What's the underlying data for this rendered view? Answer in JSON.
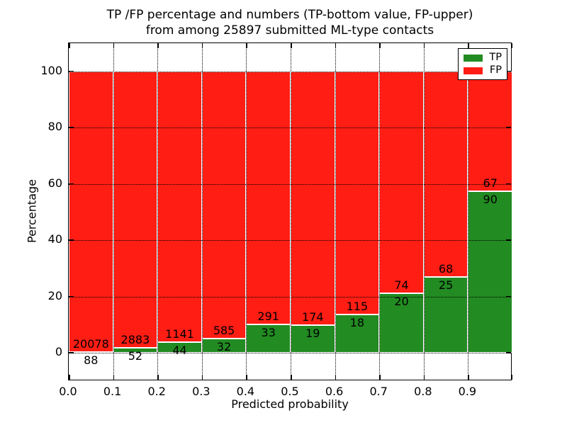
{
  "title": {
    "line1": "TP /FP percentage and numbers (TP-bottom value, FP-upper)",
    "line2": "from among 25897 submitted ML-type contacts"
  },
  "axes": {
    "xlabel": "Predicted probability",
    "ylabel": "Percentage",
    "x_tick_labels": [
      "0.0",
      "0.1",
      "0.2",
      "0.3",
      "0.4",
      "0.5",
      "0.6",
      "0.7",
      "0.8",
      "0.9"
    ],
    "y_tick_labels": [
      "0",
      "20",
      "40",
      "60",
      "80",
      "100"
    ]
  },
  "legend": {
    "position": "upper right",
    "items": [
      {
        "label": "TP",
        "color": "#228B22"
      },
      {
        "label": "FP",
        "color": "#FF1D14"
      }
    ]
  },
  "colors": {
    "tp": "#228B22",
    "fp": "#FF1D14",
    "background": "#FFFFFF",
    "frame": "#000000",
    "grid": "#000000",
    "bar_edge": "#FFFFFF"
  },
  "chart_data": {
    "type": "bar",
    "stacked": true,
    "normalized": "each bar scaled to 100%",
    "title": "TP /FP percentage and numbers (TP-bottom value, FP-upper) from among 25897 submitted ML-type contacts",
    "xlabel": "Predicted probability",
    "ylabel": "Percentage",
    "bin_starts": [
      0.0,
      0.1,
      0.2,
      0.3,
      0.4,
      0.5,
      0.6,
      0.7,
      0.8,
      0.9
    ],
    "bin_width": 0.1,
    "series": [
      {
        "name": "TP",
        "color": "#228B22",
        "values": [
          88,
          52,
          44,
          32,
          33,
          19,
          18,
          20,
          25,
          90
        ]
      },
      {
        "name": "FP",
        "color": "#FF1D14",
        "values": [
          20078,
          2883,
          1141,
          585,
          291,
          174,
          115,
          74,
          68,
          67
        ]
      }
    ],
    "total_contacts": 25897,
    "xlim": [
      0.0,
      1.0
    ],
    "ylim": [
      -10,
      110
    ],
    "y_gridlines": [
      0,
      20,
      40,
      60,
      80,
      100
    ],
    "x_gridlines": [
      0.1,
      0.2,
      0.3,
      0.4,
      0.5,
      0.6,
      0.7,
      0.8,
      0.9
    ],
    "grid": true,
    "grid_style": "dotted",
    "legend_position": "upper right"
  }
}
